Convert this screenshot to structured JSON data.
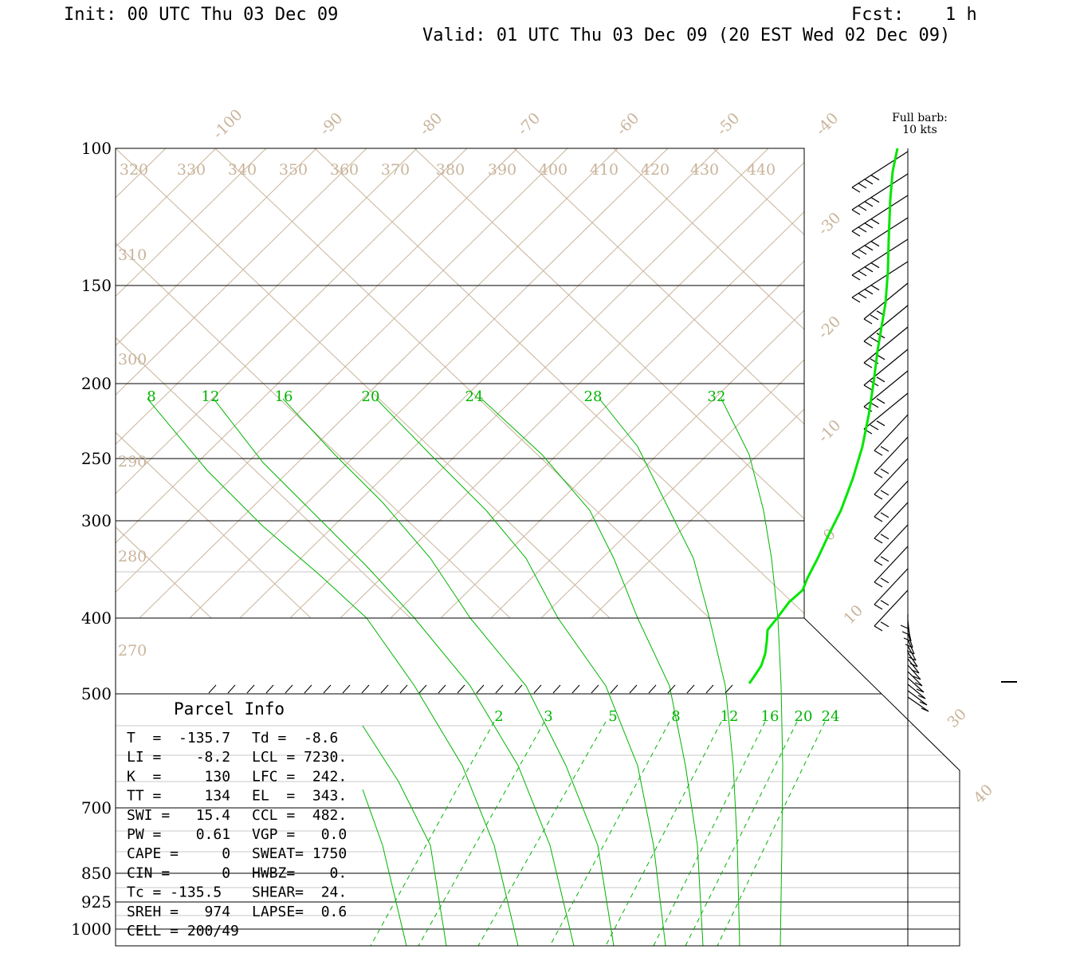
{
  "header": {
    "init": "Init: 00 UTC Thu 03 Dec 09",
    "fcst_label": "Fcst:",
    "fcst_value": "1 h",
    "valid": "Valid: 01 UTC Thu 03 Dec 09 (20 EST Wed 02 Dec 09)"
  },
  "barb_note": {
    "line1": "Full barb:",
    "line2": "10 kts"
  },
  "chart_data": {
    "type": "skew-t",
    "pressure_levels": [
      "100",
      "150",
      "200",
      "250",
      "300",
      "400",
      "500",
      "700",
      "850",
      "925",
      "1000"
    ],
    "isotherm_labels_top": [
      "-100",
      "-90",
      "-80",
      "-70",
      "-60",
      "-50",
      "-40"
    ],
    "isotherm_labels_right": [
      "-30",
      "-20",
      "-10",
      "0",
      "10",
      "30",
      "40"
    ],
    "theta_labels_top": [
      "320",
      "330",
      "340",
      "350",
      "360",
      "370",
      "380",
      "390",
      "400",
      "410",
      "420",
      "430",
      "440"
    ],
    "theta_labels_left": [
      "310",
      "300",
      "290",
      "280",
      "270"
    ],
    "theta_e_labels": [
      "8",
      "12",
      "16",
      "20",
      "24",
      "28",
      "32"
    ],
    "mixing_ratio_labels": [
      "2",
      "3",
      "5",
      "8",
      "12",
      "16",
      "20",
      "24"
    ],
    "profile_color": "#00e600",
    "isotherm_color": "#c9b49b",
    "moist_adiabat_color": "#00b400"
  },
  "parcel": {
    "title": "Parcel Info",
    "rows": [
      [
        "T  =  -135.7",
        "Td =  -8.6"
      ],
      [
        "LI =    -8.2",
        "LCL = 7230."
      ],
      [
        "K  =     130",
        "LFC =  242."
      ],
      [
        "TT =     134",
        "EL  =  343."
      ],
      [
        "SWI =   15.4",
        "CCL =  482."
      ],
      [
        "PW =    0.61",
        "VGP =   0.0"
      ],
      [
        "CAPE =     0",
        "SWEAT= 1750"
      ],
      [
        "CIN =      0",
        "HWBZ=    0."
      ],
      [
        "Tc = -135.5",
        "SHEAR=  24."
      ],
      [
        "SREH =   974",
        "LAPSE=  0.6"
      ],
      [
        "CELL = 200/49",
        ""
      ]
    ]
  }
}
